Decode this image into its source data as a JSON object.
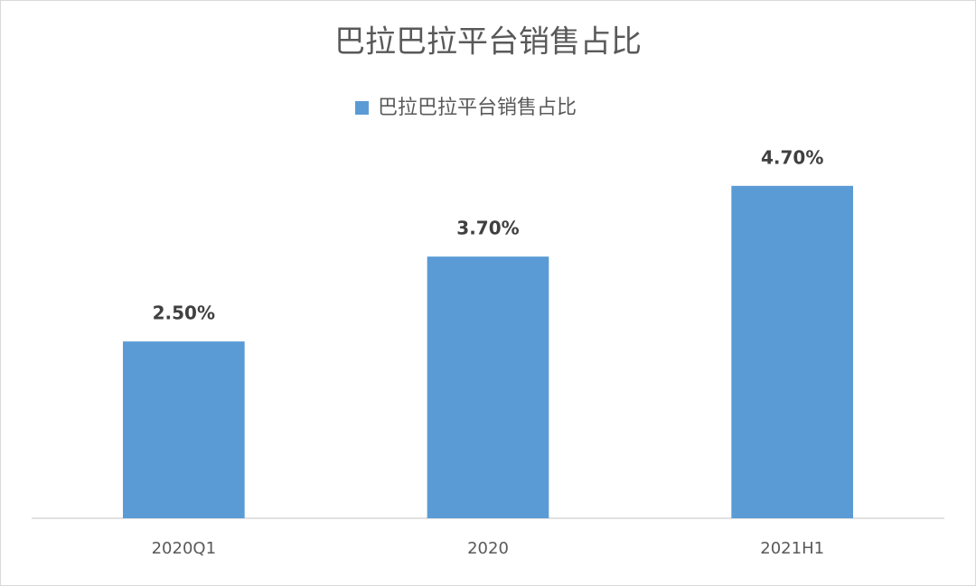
{
  "chart_data": {
    "type": "bar",
    "title": "巴拉巴拉平台销售占比",
    "categories": [
      "2020Q1",
      "2020",
      "2021H1"
    ],
    "series": [
      {
        "name": "巴拉巴拉平台销售占比",
        "color": "#5b9bd5",
        "values": [
          2.5,
          3.7,
          4.7
        ],
        "value_labels": [
          "2.50%",
          "3.70%",
          "4.70%"
        ]
      }
    ],
    "ylim": [
      0,
      6
    ]
  }
}
